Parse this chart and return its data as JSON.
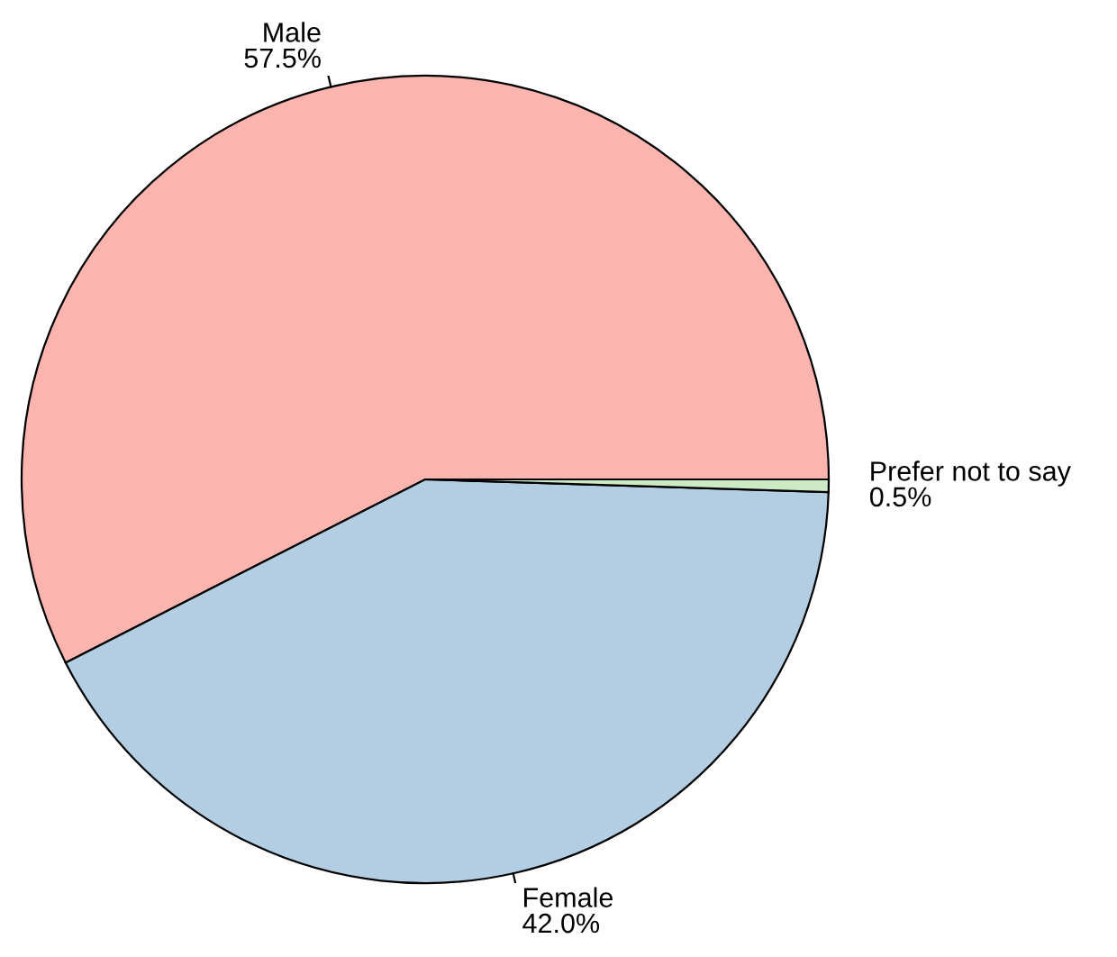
{
  "chart_data": {
    "type": "pie",
    "categories": [
      "Male",
      "Female",
      "Prefer not to say"
    ],
    "values": [
      57.5,
      42.0,
      0.5
    ],
    "value_labels": [
      "57.5%",
      "42.0%",
      "0.5%"
    ],
    "colors": [
      "#fbb4ae",
      "#b3cde3",
      "#ccebc5"
    ]
  }
}
